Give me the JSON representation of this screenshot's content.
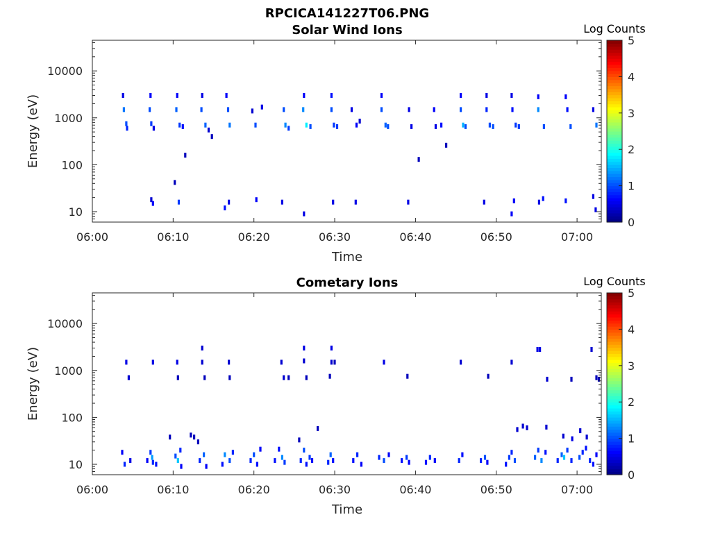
{
  "figure_title": "RPCICA141227T06.PNG",
  "colormap": [
    "#00007F",
    "#0000FF",
    "#007FFF",
    "#00FFFF",
    "#7FFF7F",
    "#FFFF00",
    "#FF7F00",
    "#FF0000",
    "#7F0000"
  ],
  "chart_data": [
    {
      "type": "heatmap",
      "title": "Solar Wind Ions",
      "xlabel": "Time",
      "ylabel": "Energy (eV)",
      "y_scale": "log",
      "ylim": [
        6,
        45000
      ],
      "xlim": [
        0,
        63
      ],
      "x_unit": "minutes after 06:00",
      "x_ticks": [
        0,
        10,
        20,
        30,
        40,
        50,
        60
      ],
      "x_tick_labels": [
        "06:00",
        "06:10",
        "06:20",
        "06:30",
        "06:40",
        "06:50",
        "07:00"
      ],
      "y_ticks": [
        10,
        100,
        1000,
        10000
      ],
      "y_tick_labels": [
        "10",
        "100",
        "1000",
        "10000"
      ],
      "colorbar": {
        "label": "Log Counts",
        "min": 0,
        "max": 5,
        "ticks": [
          "0",
          "1",
          "2",
          "3",
          "4",
          "5"
        ]
      },
      "cells": [
        [
          3.8,
          3000,
          0.5
        ],
        [
          3.9,
          1500,
          1.2
        ],
        [
          4.2,
          750,
          1.0
        ],
        [
          4.3,
          600,
          0.8
        ],
        [
          7.2,
          3000,
          0.6
        ],
        [
          7.1,
          1500,
          1.0
        ],
        [
          7.3,
          750,
          0.9
        ],
        [
          7.6,
          600,
          0.5
        ],
        [
          10.5,
          3000,
          0.6
        ],
        [
          10.4,
          1500,
          1.1
        ],
        [
          10.8,
          700,
          0.9
        ],
        [
          11.2,
          650,
          0.7
        ],
        [
          11.5,
          160,
          0.3
        ],
        [
          13.6,
          3000,
          0.5
        ],
        [
          13.5,
          1500,
          1.0
        ],
        [
          14.0,
          700,
          1.1
        ],
        [
          14.4,
          550,
          0.4
        ],
        [
          14.8,
          400,
          0.3
        ],
        [
          16.6,
          3000,
          0.6
        ],
        [
          16.8,
          1500,
          1.0
        ],
        [
          17.0,
          700,
          1.2
        ],
        [
          19.8,
          1400,
          0.4
        ],
        [
          20.2,
          700,
          1.0
        ],
        [
          21.0,
          1700,
          0.5
        ],
        [
          23.7,
          1500,
          1.0
        ],
        [
          23.9,
          700,
          1.3
        ],
        [
          24.3,
          600,
          0.9
        ],
        [
          26.2,
          3000,
          0.6
        ],
        [
          26.1,
          1500,
          1.3
        ],
        [
          26.5,
          700,
          1.8
        ],
        [
          27.0,
          650,
          1.0
        ],
        [
          29.6,
          3000,
          0.7
        ],
        [
          29.6,
          1500,
          1.0
        ],
        [
          29.9,
          700,
          0.9
        ],
        [
          30.3,
          650,
          0.9
        ],
        [
          32.1,
          1500,
          0.5
        ],
        [
          32.7,
          700,
          0.6
        ],
        [
          33.1,
          850,
          0.4
        ],
        [
          35.8,
          3000,
          0.6
        ],
        [
          35.8,
          1500,
          1.0
        ],
        [
          36.3,
          700,
          1.1
        ],
        [
          36.6,
          650,
          1.0
        ],
        [
          39.2,
          1500,
          0.5
        ],
        [
          39.5,
          650,
          0.5
        ],
        [
          40.4,
          130,
          0.3
        ],
        [
          42.3,
          1500,
          0.6
        ],
        [
          42.5,
          650,
          0.5
        ],
        [
          43.2,
          700,
          0.7
        ],
        [
          43.8,
          260,
          0.3
        ],
        [
          45.6,
          3000,
          0.6
        ],
        [
          45.6,
          1500,
          1.0
        ],
        [
          45.9,
          700,
          1.5
        ],
        [
          46.2,
          650,
          1.0
        ],
        [
          48.8,
          3000,
          0.5
        ],
        [
          48.8,
          1500,
          0.8
        ],
        [
          49.2,
          700,
          1.0
        ],
        [
          49.6,
          650,
          1.0
        ],
        [
          51.9,
          3000,
          0.5
        ],
        [
          52.0,
          1500,
          0.7
        ],
        [
          52.4,
          700,
          0.9
        ],
        [
          52.8,
          650,
          0.9
        ],
        [
          55.2,
          2800,
          0.6
        ],
        [
          55.2,
          1500,
          1.3
        ],
        [
          55.9,
          650,
          1.0
        ],
        [
          58.6,
          2800,
          0.6
        ],
        [
          58.8,
          1500,
          0.7
        ],
        [
          59.2,
          650,
          1.0
        ],
        [
          62.0,
          1500,
          0.5
        ],
        [
          62.4,
          700,
          1.2
        ],
        [
          10.2,
          42,
          0.3
        ],
        [
          7.3,
          18,
          0.4
        ],
        [
          7.5,
          15,
          0.6
        ],
        [
          10.7,
          16,
          0.9
        ],
        [
          16.4,
          12,
          0.7
        ],
        [
          16.9,
          16,
          0.5
        ],
        [
          20.3,
          18,
          0.6
        ],
        [
          23.5,
          16,
          0.5
        ],
        [
          26.2,
          9,
          0.5
        ],
        [
          29.8,
          16,
          0.5
        ],
        [
          32.6,
          16,
          0.5
        ],
        [
          39.1,
          16,
          0.5
        ],
        [
          48.5,
          16,
          0.5
        ],
        [
          51.9,
          9,
          0.6
        ],
        [
          52.2,
          17,
          0.6
        ],
        [
          55.3,
          16,
          0.5
        ],
        [
          55.8,
          19,
          0.7
        ],
        [
          58.6,
          17,
          0.7
        ],
        [
          62.0,
          21,
          0.5
        ],
        [
          62.3,
          11,
          0.5
        ]
      ]
    },
    {
      "type": "heatmap",
      "title": "Cometary Ions",
      "xlabel": "Time",
      "ylabel": "Energy (eV)",
      "y_scale": "log",
      "ylim": [
        6,
        45000
      ],
      "xlim": [
        0,
        63
      ],
      "x_unit": "minutes after 06:00",
      "x_ticks": [
        0,
        10,
        20,
        30,
        40,
        50,
        60
      ],
      "x_tick_labels": [
        "06:00",
        "06:10",
        "06:20",
        "06:30",
        "06:40",
        "06:50",
        "07:00"
      ],
      "y_ticks": [
        10,
        100,
        1000,
        10000
      ],
      "y_tick_labels": [
        "10",
        "100",
        "1000",
        "10000"
      ],
      "colorbar": {
        "label": "Log Counts",
        "min": 0,
        "max": 5,
        "ticks": [
          "0",
          "1",
          "2",
          "3",
          "4",
          "5"
        ]
      },
      "cells": [
        [
          4.2,
          1500,
          0.5
        ],
        [
          4.5,
          700,
          0.4
        ],
        [
          7.5,
          1500,
          0.5
        ],
        [
          10.5,
          1500,
          0.5
        ],
        [
          10.6,
          700,
          0.3
        ],
        [
          13.6,
          3000,
          0.4
        ],
        [
          13.6,
          1500,
          0.4
        ],
        [
          13.9,
          700,
          0.3
        ],
        [
          16.9,
          1500,
          0.4
        ],
        [
          17.0,
          700,
          0.3
        ],
        [
          23.4,
          1500,
          0.4
        ],
        [
          23.7,
          700,
          0.4
        ],
        [
          24.3,
          700,
          0.3
        ],
        [
          26.2,
          3000,
          0.5
        ],
        [
          26.2,
          1600,
          0.4
        ],
        [
          26.5,
          700,
          0.3
        ],
        [
          29.6,
          3000,
          0.5
        ],
        [
          29.6,
          1500,
          0.4
        ],
        [
          30.0,
          1500,
          0.3
        ],
        [
          29.4,
          750,
          0.3
        ],
        [
          36.1,
          1500,
          0.5
        ],
        [
          39.0,
          750,
          0.3
        ],
        [
          45.6,
          1500,
          0.4
        ],
        [
          49.0,
          750,
          0.3
        ],
        [
          51.9,
          1500,
          0.4
        ],
        [
          55.1,
          2800,
          0.5
        ],
        [
          55.4,
          2800,
          0.5
        ],
        [
          56.3,
          650,
          0.4
        ],
        [
          59.3,
          650,
          0.3
        ],
        [
          61.8,
          2800,
          0.4
        ],
        [
          62.4,
          700,
          0.3
        ],
        [
          62.7,
          650,
          0.3
        ],
        [
          9.6,
          38,
          0.3
        ],
        [
          12.2,
          42,
          0.3
        ],
        [
          12.6,
          38,
          0.3
        ],
        [
          13.1,
          30,
          0.3
        ],
        [
          25.6,
          33,
          0.3
        ],
        [
          27.9,
          58,
          0.3
        ],
        [
          52.6,
          55,
          0.4
        ],
        [
          53.3,
          65,
          0.4
        ],
        [
          53.8,
          60,
          0.4
        ],
        [
          56.2,
          62,
          0.4
        ],
        [
          58.3,
          40,
          0.4
        ],
        [
          59.4,
          35,
          0.5
        ],
        [
          60.4,
          52,
          0.4
        ],
        [
          61.2,
          38,
          0.4
        ],
        [
          3.7,
          18,
          0.6
        ],
        [
          4.0,
          10,
          0.8
        ],
        [
          4.7,
          12,
          0.5
        ],
        [
          6.8,
          12,
          0.6
        ],
        [
          7.2,
          18,
          0.9
        ],
        [
          7.4,
          14,
          1.4
        ],
        [
          7.5,
          11,
          0.8
        ],
        [
          7.9,
          10,
          0.7
        ],
        [
          10.3,
          15,
          1.0
        ],
        [
          10.6,
          12,
          1.6
        ],
        [
          10.9,
          20,
          0.8
        ],
        [
          11.0,
          9,
          0.6
        ],
        [
          13.3,
          12,
          0.8
        ],
        [
          13.8,
          16,
          1.1
        ],
        [
          14.1,
          9,
          0.6
        ],
        [
          16.1,
          10,
          0.7
        ],
        [
          16.4,
          16,
          1.3
        ],
        [
          17.0,
          12,
          1.0
        ],
        [
          17.4,
          18,
          0.8
        ],
        [
          19.6,
          12,
          0.8
        ],
        [
          20.0,
          16,
          1.0
        ],
        [
          20.4,
          10,
          0.7
        ],
        [
          20.8,
          21,
          0.6
        ],
        [
          22.6,
          12,
          0.7
        ],
        [
          23.1,
          21,
          0.7
        ],
        [
          23.5,
          14,
          1.3
        ],
        [
          23.8,
          11,
          0.9
        ],
        [
          25.8,
          12,
          0.8
        ],
        [
          26.2,
          20,
          1.0
        ],
        [
          26.5,
          10,
          0.7
        ],
        [
          26.9,
          14,
          0.9
        ],
        [
          27.2,
          12,
          0.6
        ],
        [
          29.2,
          11,
          0.8
        ],
        [
          29.5,
          16,
          1.1
        ],
        [
          29.8,
          12,
          0.7
        ],
        [
          32.3,
          12,
          0.7
        ],
        [
          32.8,
          16,
          0.8
        ],
        [
          33.3,
          10,
          0.6
        ],
        [
          35.5,
          14,
          0.8
        ],
        [
          36.1,
          12,
          1.0
        ],
        [
          36.7,
          16,
          0.6
        ],
        [
          38.3,
          12,
          0.7
        ],
        [
          38.9,
          14,
          0.9
        ],
        [
          39.2,
          11,
          0.6
        ],
        [
          41.3,
          11,
          0.7
        ],
        [
          41.8,
          14,
          0.8
        ],
        [
          42.4,
          12,
          0.6
        ],
        [
          45.4,
          12,
          0.8
        ],
        [
          45.8,
          16,
          0.7
        ],
        [
          48.1,
          12,
          0.8
        ],
        [
          48.6,
          14,
          1.0
        ],
        [
          48.9,
          11,
          0.6
        ],
        [
          51.2,
          10,
          0.7
        ],
        [
          51.6,
          14,
          0.9
        ],
        [
          51.9,
          18,
          0.8
        ],
        [
          52.3,
          12,
          1.0
        ],
        [
          54.8,
          14,
          1.1
        ],
        [
          55.2,
          20,
          0.9
        ],
        [
          55.6,
          12,
          1.3
        ],
        [
          56.1,
          18,
          0.7
        ],
        [
          57.6,
          12,
          0.8
        ],
        [
          58.1,
          16,
          1.1
        ],
        [
          58.4,
          14,
          1.6
        ],
        [
          58.8,
          20,
          0.9
        ],
        [
          59.3,
          12,
          0.8
        ],
        [
          60.3,
          14,
          1.0
        ],
        [
          60.7,
          18,
          0.8
        ],
        [
          61.1,
          22,
          0.7
        ],
        [
          61.6,
          12,
          0.8
        ],
        [
          62.0,
          10,
          0.7
        ],
        [
          62.4,
          16,
          0.6
        ]
      ]
    }
  ]
}
